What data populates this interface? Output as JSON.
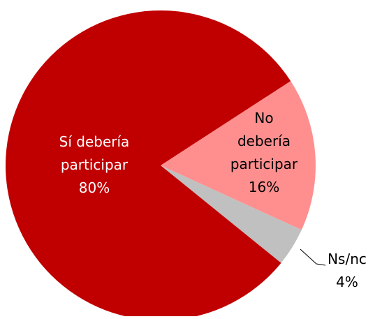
{
  "chart_data": {
    "type": "pie",
    "categories": [
      "Sí debería\nparticipar",
      "No\ndebería\nparticipar",
      "Ns/nc"
    ],
    "values": [
      80,
      16,
      4
    ],
    "value_labels": [
      "80%",
      "16%",
      "4%"
    ],
    "colors": [
      "#c00000",
      "#ff8f8f",
      "#c0c0c0"
    ]
  }
}
